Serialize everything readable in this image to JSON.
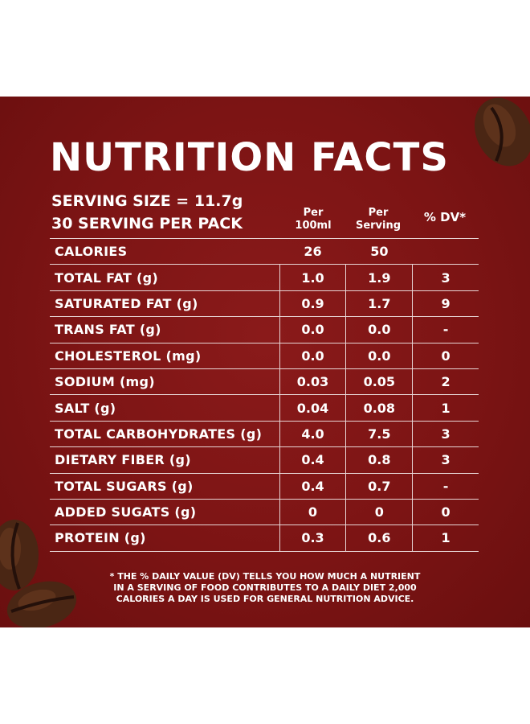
{
  "title": "NUTRITION FACTS",
  "serving_size": "SERVING SIZE = 11.7g",
  "servings_per_pack": "30 SERVING PER PACK",
  "columns": {
    "per100_line1": "Per",
    "per100_line2": "100ml",
    "perserving_line1": "Per",
    "perserving_line2": "Serving",
    "dv": "% DV*"
  },
  "rows": [
    {
      "label": "CALORIES",
      "per100": "26",
      "serving": "50",
      "dv": ""
    },
    {
      "label": "TOTAL FAT (g)",
      "per100": "1.0",
      "serving": "1.9",
      "dv": "3"
    },
    {
      "label": "SATURATED FAT (g)",
      "per100": "0.9",
      "serving": "1.7",
      "dv": "9"
    },
    {
      "label": "TRANS FAT (g)",
      "per100": "0.0",
      "serving": "0.0",
      "dv": "-"
    },
    {
      "label": "CHOLESTEROL (mg)",
      "per100": "0.0",
      "serving": "0.0",
      "dv": "0"
    },
    {
      "label": "SODIUM (mg)",
      "per100": "0.03",
      "serving": "0.05",
      "dv": "2"
    },
    {
      "label": "SALT (g)",
      "per100": "0.04",
      "serving": "0.08",
      "dv": "1"
    },
    {
      "label": "TOTAL CARBOHYDRATES (g)",
      "per100": "4.0",
      "serving": "7.5",
      "dv": "3"
    },
    {
      "label": "DIETARY FIBER (g)",
      "per100": "0.4",
      "serving": "0.8",
      "dv": "3"
    },
    {
      "label": "TOTAL SUGARS (g)",
      "per100": "0.4",
      "serving": "0.7",
      "dv": "-"
    },
    {
      "label": "ADDED SUGATS (g)",
      "per100": "0",
      "serving": "0",
      "dv": "0"
    },
    {
      "label": "PROTEIN (g)",
      "per100": "0.3",
      "serving": "0.6",
      "dv": "1"
    }
  ],
  "footnote": {
    "line1": "* THE % DAILY VALUE (DV) TELLS YOU HOW MUCH A NUTRIENT",
    "line2": "IN A SERVING OF FOOD CONTRIBUTES TO A DAILY DIET 2,000",
    "line3": "CALORIES A DAY IS USED FOR GENERAL NUTRITION ADVICE."
  },
  "colors": {
    "panel": "#7c1414",
    "text": "#ffffff",
    "bean": "#4a2614"
  }
}
